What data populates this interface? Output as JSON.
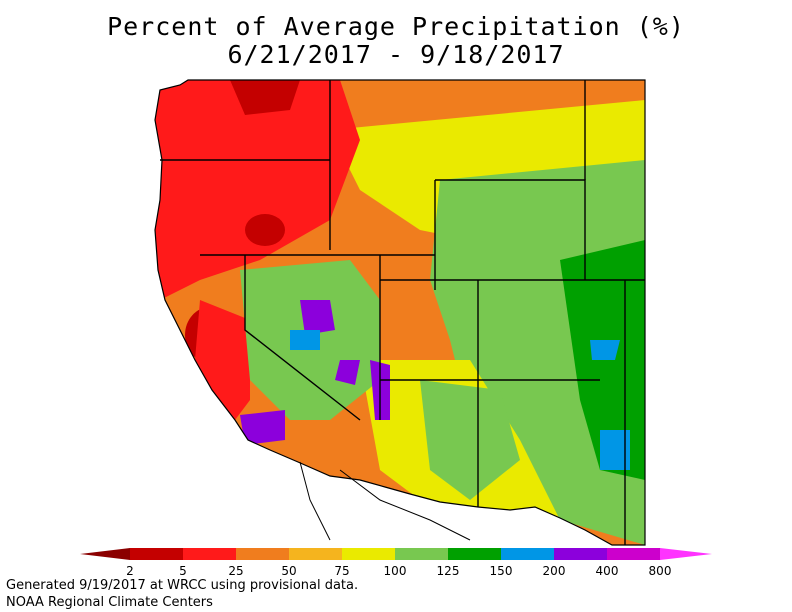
{
  "title": {
    "line1": "Percent of Average Precipitation (%)",
    "line2": "6/21/2017 - 9/18/2017"
  },
  "legend": {
    "ticks": [
      "2",
      "5",
      "25",
      "50",
      "75",
      "100",
      "125",
      "150",
      "200",
      "400",
      "800"
    ],
    "colors": [
      "#8b0000",
      "#c40000",
      "#ff1a1a",
      "#f07d1e",
      "#f5b41e",
      "#eaea00",
      "#78c850",
      "#00a000",
      "#0096e6",
      "#8c00dc",
      "#cc00cc",
      "#ff33ff"
    ]
  },
  "footer": {
    "line1": "Generated 9/19/2017 at WRCC using provisional data.",
    "line2": "NOAA Regional Climate Centers"
  }
}
